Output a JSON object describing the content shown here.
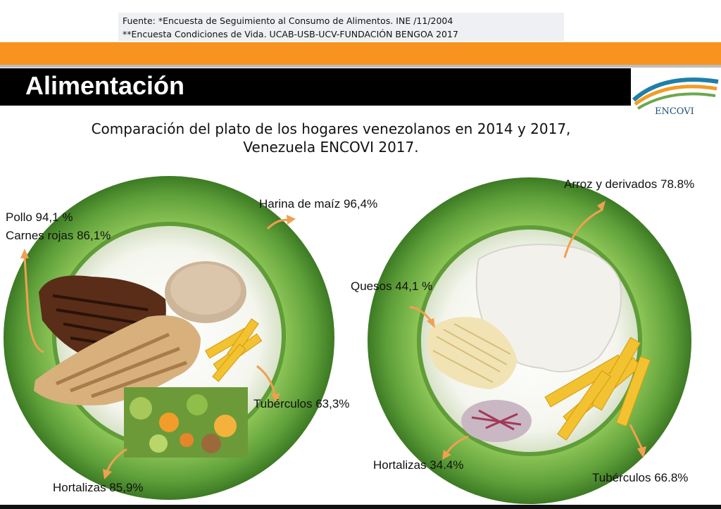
{
  "source": {
    "line1": "Fuente: *Encuesta de Seguimiento al Consumo de Alimentos. INE /11/2004",
    "line2": "**Encuesta Condiciones de Vida. UCAB-USB-UCV-FUNDACIÓN BENGOA 2017"
  },
  "header": {
    "title": "Alimentación"
  },
  "logo": {
    "text": "ENCOVI"
  },
  "subtitle": {
    "line1": "Comparación del plato de los hogares venezolanos en 2014 y 2017,",
    "line2": "Venezuela ENCOVI 2017."
  },
  "plate_2014": {
    "pollo": "Pollo 94,1 %",
    "carnes": "Carnes rojas 86,1%",
    "harina": "Harina de maíz 96,4%",
    "tuberculos": "Tubérculos 63,3%",
    "hortalizas": "Hortalizas 85,9%"
  },
  "plate_2017": {
    "arroz": "Arroz y derivados 78.8%",
    "quesos": "Quesos  44,1 %",
    "hortalizas": "Hortalizas 34.4%",
    "tuberculos": "Tubérculos 66.8%"
  },
  "colors": {
    "orange": "#f7931e",
    "plate_green": "#78b445",
    "arrow": "#f0a050"
  }
}
